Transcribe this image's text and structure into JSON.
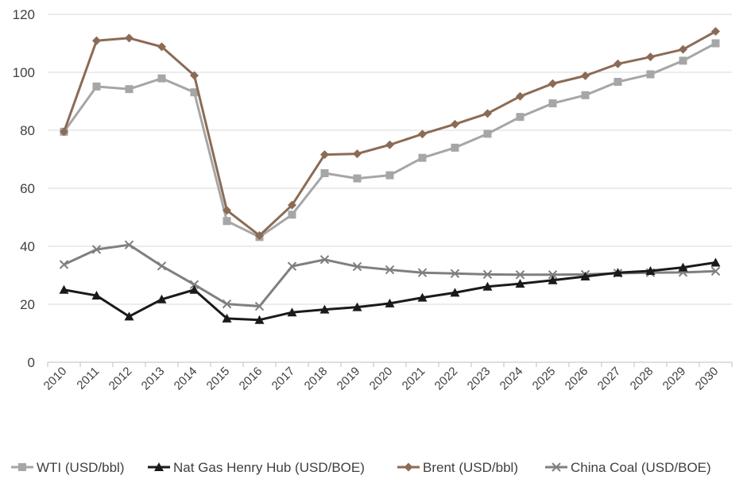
{
  "chart_data": {
    "type": "line",
    "title": "",
    "xlabel": "",
    "ylabel": "",
    "ylim": [
      0,
      120
    ],
    "yticks": [
      0,
      20,
      40,
      60,
      80,
      100,
      120
    ],
    "grid": "horizontal",
    "legend_position": "bottom",
    "categories": [
      "2010",
      "2011",
      "2012",
      "2013",
      "2014",
      "2015",
      "2016",
      "2017",
      "2018",
      "2019",
      "2020",
      "2021",
      "2022",
      "2023",
      "2024",
      "2025",
      "2026",
      "2027",
      "2028",
      "2029",
      "2030"
    ],
    "series": [
      {
        "name": "WTI (USD/bbl)",
        "color": "#a6a6a6",
        "marker": "square",
        "values": [
          79.5,
          95.1,
          94.2,
          97.9,
          93.1,
          48.7,
          43.2,
          50.9,
          65.2,
          63.4,
          64.5,
          70.5,
          74.0,
          78.8,
          84.6,
          89.3,
          92.1,
          96.7,
          99.3,
          104.0,
          110.0
        ]
      },
      {
        "name": "Nat Gas Henry Hub (USD/BOE)",
        "color": "#1a1a1a",
        "marker": "triangle",
        "values": [
          25.0,
          23.0,
          15.8,
          21.7,
          25.0,
          15.1,
          14.6,
          17.2,
          18.2,
          19.0,
          20.3,
          22.3,
          24.0,
          26.1,
          27.1,
          28.3,
          29.6,
          30.9,
          31.5,
          32.7,
          34.4
        ]
      },
      {
        "name": "Brent (USD/bbl)",
        "color": "#8b6b55",
        "marker": "diamond",
        "values": [
          79.5,
          110.9,
          111.8,
          108.8,
          98.9,
          52.4,
          43.7,
          54.2,
          71.6,
          71.9,
          75.0,
          78.7,
          82.1,
          85.8,
          91.7,
          96.1,
          98.8,
          102.9,
          105.3,
          107.9,
          114.1
        ]
      },
      {
        "name": "China Coal (USD/BOE)",
        "color": "#7f7f7f",
        "marker": "x",
        "values": [
          33.7,
          38.9,
          40.5,
          33.2,
          26.8,
          20.1,
          19.3,
          33.1,
          35.4,
          33.0,
          31.9,
          30.9,
          30.6,
          30.3,
          30.2,
          30.2,
          30.3,
          30.7,
          30.9,
          31.0,
          31.4
        ]
      }
    ]
  }
}
